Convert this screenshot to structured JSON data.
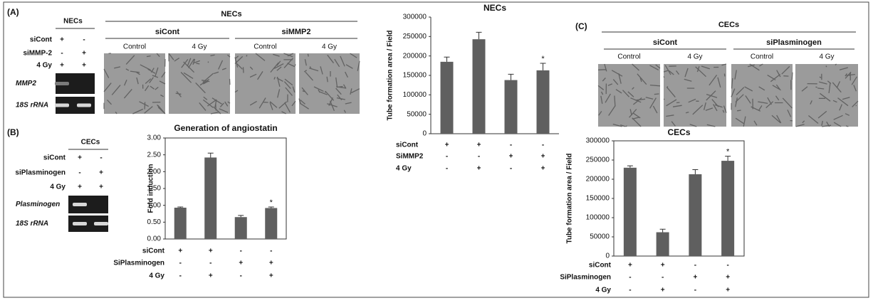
{
  "panel_a": {
    "label": "(A)",
    "gel": {
      "title": "NECs",
      "rows": [
        {
          "label": "siCont",
          "signs": [
            "+",
            "-"
          ]
        },
        {
          "label": "siMMP-2",
          "signs": [
            "-",
            "+"
          ]
        },
        {
          "label": "4 Gy",
          "signs": [
            "+",
            "+"
          ]
        }
      ],
      "bands": [
        "MMP2",
        "18S rRNA"
      ]
    },
    "images": {
      "title": "NECs",
      "groups": [
        "siCont",
        "siMMP2"
      ],
      "conditions": [
        "Control",
        "4 Gy",
        "Control",
        "4 Gy"
      ]
    }
  },
  "panel_b": {
    "label": "(B)",
    "gel": {
      "title": "CECs",
      "rows": [
        {
          "label": "siCont",
          "signs": [
            "+",
            "-"
          ]
        },
        {
          "label": "siPlasminogen",
          "signs": [
            "-",
            "+"
          ]
        },
        {
          "label": "4 Gy",
          "signs": [
            "+",
            "+"
          ]
        }
      ],
      "bands": [
        "Plasminogen",
        "18S rRNA"
      ]
    }
  },
  "panel_c": {
    "label": "(C)",
    "images": {
      "title": "CECs",
      "groups": [
        "siCont",
        "siPlasminogen"
      ],
      "conditions": [
        "Control",
        "4 Gy",
        "Control",
        "4 Gy"
      ]
    }
  },
  "chart_data": [
    {
      "type": "bar",
      "title": "NECs",
      "y_label": "Tube formation area / Field",
      "color": "#5f5f5f",
      "values": [
        185000,
        243000,
        138000,
        163000
      ],
      "errors": [
        12000,
        18000,
        15000,
        18000
      ],
      "significance": [
        null,
        null,
        null,
        "*"
      ],
      "conditions": [
        {
          "label": "siCont",
          "signs": [
            "+",
            "+",
            "-",
            "-"
          ]
        },
        {
          "label": "SiMMP2",
          "signs": [
            "-",
            "-",
            "+",
            "+"
          ]
        },
        {
          "label": "4 Gy",
          "signs": [
            "-",
            "+",
            "-",
            "+"
          ]
        }
      ],
      "ylim": [
        0,
        300000
      ],
      "yticks": [
        0,
        50000,
        100000,
        150000,
        200000,
        250000,
        300000
      ]
    },
    {
      "type": "bar",
      "title": "Generation of angiostatin",
      "y_label": "Fold induction",
      "color": "#5f5f5f",
      "values": [
        0.93,
        2.42,
        0.65,
        0.92
      ],
      "errors": [
        0.02,
        0.13,
        0.05,
        0.03
      ],
      "significance": [
        null,
        null,
        null,
        "*"
      ],
      "conditions": [
        {
          "label": "siCont",
          "signs": [
            "+",
            "+",
            "-",
            "-"
          ]
        },
        {
          "label": "SiPlasminogen",
          "signs": [
            "-",
            "-",
            "+",
            "+"
          ]
        },
        {
          "label": "4 Gy",
          "signs": [
            "-",
            "+",
            "-",
            "+"
          ]
        }
      ],
      "ylim": [
        0,
        3
      ],
      "yticks": [
        {
          "value": 0,
          "label": "0.00"
        },
        {
          "value": 0.5,
          "label": "0.50"
        },
        {
          "value": 1,
          "label": "1.00"
        },
        {
          "value": 1.5,
          "label": "1.50"
        },
        {
          "value": 2,
          "label": "2.00"
        },
        {
          "value": 2.5,
          "label": "2.50"
        },
        {
          "value": 3,
          "label": "3.00"
        }
      ]
    },
    {
      "type": "bar",
      "title": "CECs",
      "y_label": "Tube formation area / Field",
      "color": "#5f5f5f",
      "values": [
        230000,
        62000,
        213000,
        248000
      ],
      "errors": [
        5000,
        8000,
        12000,
        12000
      ],
      "significance": [
        null,
        null,
        null,
        "*"
      ],
      "conditions": [
        {
          "label": "siCont",
          "signs": [
            "+",
            "+",
            "-",
            "-"
          ]
        },
        {
          "label": "SiPlasminogen",
          "signs": [
            "-",
            "-",
            "+",
            "+"
          ]
        },
        {
          "label": "4 Gy",
          "signs": [
            "-",
            "+",
            "-",
            "+"
          ]
        }
      ],
      "ylim": [
        0,
        300000
      ],
      "yticks": [
        0,
        50000,
        100000,
        150000,
        200000,
        250000,
        300000
      ]
    }
  ]
}
